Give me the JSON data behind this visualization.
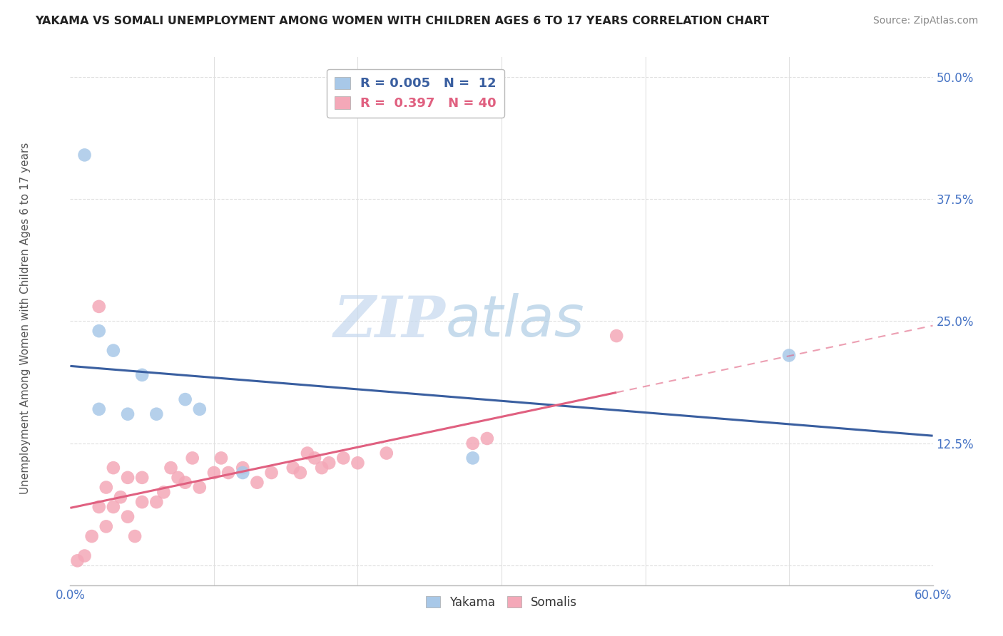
{
  "title": "YAKAMA VS SOMALI UNEMPLOYMENT AMONG WOMEN WITH CHILDREN AGES 6 TO 17 YEARS CORRELATION CHART",
  "source": "Source: ZipAtlas.com",
  "ylabel": "Unemployment Among Women with Children Ages 6 to 17 years",
  "xlim": [
    0.0,
    0.6
  ],
  "ylim": [
    -0.02,
    0.52
  ],
  "xticks": [
    0.0,
    0.1,
    0.2,
    0.3,
    0.4,
    0.5,
    0.6
  ],
  "xticklabels": [
    "0.0%",
    "",
    "",
    "",
    "",
    "",
    "60.0%"
  ],
  "yticks": [
    0.0,
    0.125,
    0.25,
    0.375,
    0.5
  ],
  "yticklabels": [
    "",
    "12.5%",
    "25.0%",
    "37.5%",
    "50.0%"
  ],
  "background_color": "#ffffff",
  "grid_color": "#e0e0e0",
  "yakama_color": "#a8c8e8",
  "somali_color": "#f4a8b8",
  "yakama_line_color": "#3a5fa0",
  "somali_line_color": "#e06080",
  "legend_R_yakama": "R = 0.005",
  "legend_N_yakama": "N =  12",
  "legend_R_somali": "R =  0.397",
  "legend_N_somali": "N = 40",
  "yakama_x": [
    0.01,
    0.02,
    0.03,
    0.05,
    0.06,
    0.08,
    0.09,
    0.28,
    0.5,
    0.02,
    0.04,
    0.12
  ],
  "yakama_y": [
    0.42,
    0.24,
    0.22,
    0.195,
    0.155,
    0.17,
    0.16,
    0.11,
    0.215,
    0.16,
    0.155,
    0.095
  ],
  "somali_x": [
    0.005,
    0.01,
    0.015,
    0.02,
    0.025,
    0.025,
    0.03,
    0.03,
    0.035,
    0.04,
    0.04,
    0.045,
    0.05,
    0.05,
    0.06,
    0.065,
    0.07,
    0.075,
    0.08,
    0.085,
    0.09,
    0.1,
    0.105,
    0.11,
    0.12,
    0.13,
    0.14,
    0.155,
    0.16,
    0.165,
    0.17,
    0.175,
    0.18,
    0.19,
    0.2,
    0.22,
    0.28,
    0.29,
    0.38,
    0.02
  ],
  "somali_y": [
    0.005,
    0.01,
    0.03,
    0.06,
    0.04,
    0.08,
    0.06,
    0.1,
    0.07,
    0.05,
    0.09,
    0.03,
    0.065,
    0.09,
    0.065,
    0.075,
    0.1,
    0.09,
    0.085,
    0.11,
    0.08,
    0.095,
    0.11,
    0.095,
    0.1,
    0.085,
    0.095,
    0.1,
    0.095,
    0.115,
    0.11,
    0.1,
    0.105,
    0.11,
    0.105,
    0.115,
    0.125,
    0.13,
    0.235,
    0.265
  ],
  "somali_line_solid_end": 0.38,
  "watermark_zip": "ZIP",
  "watermark_atlas": "atlas"
}
